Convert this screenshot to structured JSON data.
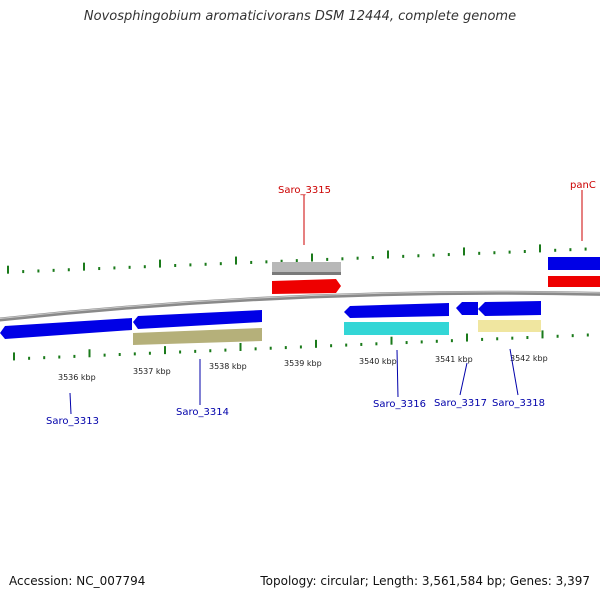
{
  "title": "Novosphingobium aromaticivorans DSM 12444, complete genome",
  "footer": {
    "accession": "Accession: NC_007794",
    "summary": "Topology: circular; Length: 3,561,584 bp; Genes: 3,397"
  },
  "colors": {
    "forward_gene": "#0000e6",
    "reverse_gene": "#0000e6",
    "rna": "#ee0000",
    "pseudo": "#b8b8b8",
    "cds_cyan": "#33d6d6",
    "cds_olive": "#b5b07a",
    "cds_yellow": "#f0e6a0",
    "tick": "#1a7a1a",
    "backbone": "#8a8a8a",
    "label_reverse": "#cc0000",
    "label_forward": "#0000aa"
  },
  "scale": {
    "unit": "kbp",
    "labels": [
      "3536 kbp",
      "3537 kbp",
      "3538 kbp",
      "3539 kbp",
      "3540 kbp",
      "3541 kbp",
      "3542 kbp"
    ]
  },
  "genes": {
    "top": [
      {
        "label": "Saro_3315",
        "color_key": "label_reverse"
      },
      {
        "label": "panC",
        "color_key": "label_reverse"
      }
    ],
    "bottom": [
      {
        "label": "Saro_3313"
      },
      {
        "label": "Saro_3314"
      },
      {
        "label": "Saro_3316"
      },
      {
        "label": "Saro_3317"
      },
      {
        "label": "Saro_3318"
      }
    ]
  }
}
